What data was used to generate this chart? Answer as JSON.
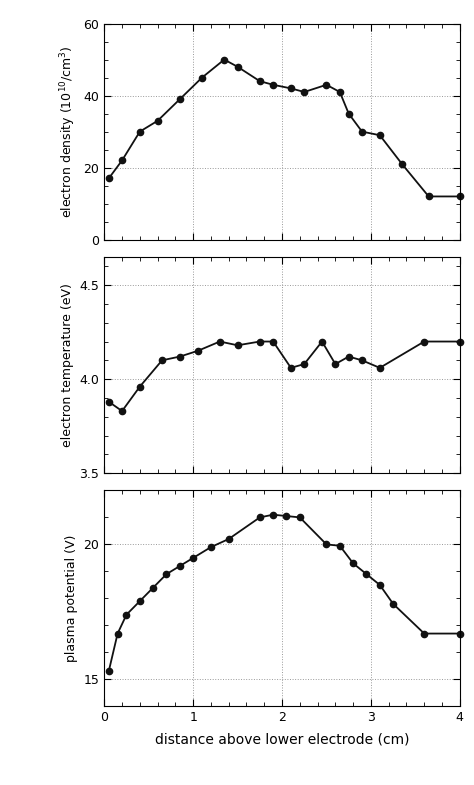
{
  "density_x": [
    0.05,
    0.2,
    0.4,
    0.6,
    0.85,
    1.1,
    1.35,
    1.5,
    1.75,
    1.9,
    2.1,
    2.25,
    2.5,
    2.65,
    2.75,
    2.9,
    3.1,
    3.35,
    3.65,
    4.0
  ],
  "density_y": [
    17,
    22,
    30,
    33,
    39,
    45,
    50,
    48,
    44,
    43,
    42,
    41,
    43,
    41,
    35,
    30,
    29,
    21,
    12,
    12
  ],
  "density_ylim": [
    0,
    60
  ],
  "density_yticks": [
    0,
    20,
    40,
    60
  ],
  "density_ylabel": "electron density (10$^{10}$/cm$^3$)",
  "temp_x": [
    0.05,
    0.2,
    0.4,
    0.65,
    0.85,
    1.05,
    1.3,
    1.5,
    1.75,
    1.9,
    2.1,
    2.25,
    2.45,
    2.6,
    2.75,
    2.9,
    3.1,
    3.6,
    4.0
  ],
  "temp_y": [
    3.88,
    3.83,
    3.96,
    4.1,
    4.12,
    4.15,
    4.2,
    4.18,
    4.2,
    4.2,
    4.06,
    4.08,
    4.2,
    4.08,
    4.12,
    4.1,
    4.06,
    4.2,
    4.2
  ],
  "temp_ylim": [
    3.5,
    4.65
  ],
  "temp_yticks": [
    3.5,
    4.0,
    4.5
  ],
  "temp_ylabel": "electron temperature (eV)",
  "potential_x": [
    0.05,
    0.15,
    0.25,
    0.4,
    0.55,
    0.7,
    0.85,
    1.0,
    1.2,
    1.4,
    1.75,
    1.9,
    2.05,
    2.2,
    2.5,
    2.65,
    2.8,
    2.95,
    3.1,
    3.25,
    3.6,
    4.0
  ],
  "potential_y": [
    15.3,
    16.7,
    17.4,
    17.9,
    18.4,
    18.9,
    19.2,
    19.5,
    19.9,
    20.2,
    21.0,
    21.1,
    21.05,
    21.0,
    20.0,
    19.95,
    19.3,
    18.9,
    18.5,
    17.8,
    16.7,
    16.7
  ],
  "potential_ylim": [
    14,
    22
  ],
  "potential_yticks": [
    15,
    20
  ],
  "potential_ylabel": "plasma potential (V)",
  "xlabel": "distance above lower electrode (cm)",
  "xlim": [
    0,
    4
  ],
  "xticks": [
    0,
    1,
    2,
    3,
    4
  ],
  "line_color": "#111111",
  "marker": "o",
  "markersize": 4.5,
  "linewidth": 1.3,
  "background": "white",
  "grid_color": "#999999",
  "grid_style": ":"
}
